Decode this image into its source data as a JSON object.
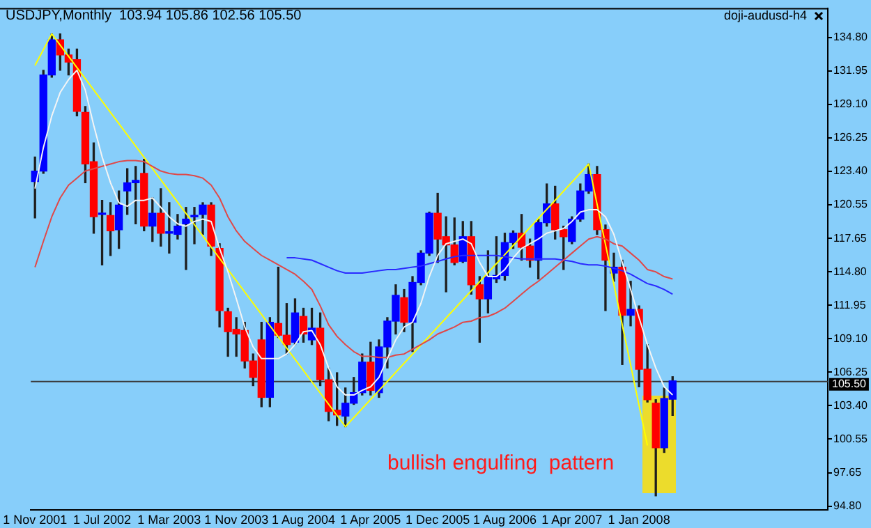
{
  "chart_data": {
    "type": "candlestick",
    "title": "USDJPY,Monthly  103.94 105.86 102.56 105.50",
    "categories": [
      "1 Nov 2001",
      null,
      null,
      null,
      null,
      null,
      null,
      null,
      "1 Jul 2002",
      null,
      null,
      null,
      null,
      null,
      null,
      null,
      "1 Mar 2003",
      null,
      null,
      null,
      null,
      null,
      null,
      null,
      "1 Nov 2003",
      null,
      null,
      null,
      null,
      null,
      null,
      null,
      "1 Aug 2004",
      null,
      null,
      null,
      null,
      null,
      null,
      null,
      "1 Apr 2005",
      null,
      null,
      null,
      null,
      null,
      null,
      null,
      "1 Dec 2005",
      null,
      null,
      null,
      null,
      null,
      null,
      null,
      "1 Aug 2006",
      null,
      null,
      null,
      null,
      null,
      null,
      null,
      "1 Apr 2007",
      null,
      null,
      null,
      null,
      null,
      null,
      null,
      "1 Jan 2008",
      null,
      null,
      null,
      null
    ],
    "ohlc": [
      [
        122.5,
        124.6,
        119.4,
        123.4
      ],
      [
        123.4,
        132.0,
        123.2,
        131.6
      ],
      [
        131.6,
        135.1,
        131.4,
        134.6
      ],
      [
        134.6,
        135.1,
        132.0,
        133.3
      ],
      [
        133.3,
        133.8,
        131.6,
        132.7
      ],
      [
        132.9,
        133.8,
        128.1,
        128.5
      ],
      [
        128.4,
        128.9,
        122.4,
        124.0
      ],
      [
        124.2,
        125.8,
        118.1,
        119.5
      ],
      [
        119.7,
        120.9,
        115.4,
        119.8
      ],
      [
        119.6,
        120.7,
        116.2,
        118.3
      ],
      [
        118.4,
        121.7,
        116.8,
        120.5
      ],
      [
        121.7,
        123.6,
        119.7,
        122.4
      ],
      [
        122.4,
        123.8,
        118.9,
        122.6
      ],
      [
        123.2,
        124.4,
        118.3,
        118.7
      ],
      [
        118.7,
        121.1,
        117.4,
        119.8
      ],
      [
        119.8,
        121.9,
        117.0,
        118.1
      ],
      [
        118.1,
        120.7,
        116.4,
        118.2
      ],
      [
        118.0,
        119.7,
        117.6,
        118.7
      ],
      [
        118.9,
        120.3,
        115.0,
        119.3
      ],
      [
        119.5,
        120.3,
        117.2,
        119.6
      ],
      [
        119.7,
        120.7,
        118.0,
        120.5
      ],
      [
        120.5,
        120.7,
        116.2,
        117.0
      ],
      [
        116.8,
        117.2,
        110.1,
        111.5
      ],
      [
        111.4,
        111.7,
        107.6,
        109.7
      ],
      [
        109.9,
        110.9,
        107.6,
        109.5
      ],
      [
        109.8,
        110.5,
        106.6,
        107.2
      ],
      [
        107.2,
        107.8,
        105.1,
        105.8
      ],
      [
        109.0,
        110.5,
        103.3,
        104.1
      ],
      [
        104.1,
        110.9,
        103.3,
        110.5
      ],
      [
        110.4,
        115.2,
        109.2,
        109.4
      ],
      [
        109.4,
        112.1,
        107.8,
        108.6
      ],
      [
        108.8,
        112.5,
        108.6,
        111.3
      ],
      [
        111.0,
        111.7,
        108.8,
        109.5
      ],
      [
        109.0,
        111.7,
        108.6,
        110.0
      ],
      [
        110.0,
        111.3,
        105.1,
        105.6
      ],
      [
        105.6,
        106.6,
        102.1,
        102.9
      ],
      [
        103.0,
        106.2,
        101.7,
        102.6
      ],
      [
        102.5,
        104.9,
        101.6,
        103.6
      ],
      [
        103.6,
        105.8,
        103.5,
        104.5
      ],
      [
        104.5,
        107.8,
        104.3,
        107.1
      ],
      [
        107.1,
        108.8,
        104.3,
        104.7
      ],
      [
        104.5,
        109.0,
        104.1,
        108.4
      ],
      [
        108.4,
        110.9,
        106.6,
        110.6
      ],
      [
        110.6,
        113.7,
        109.5,
        112.8
      ],
      [
        112.6,
        113.3,
        109.7,
        110.5
      ],
      [
        110.5,
        114.4,
        108.0,
        113.9
      ],
      [
        113.9,
        116.6,
        113.7,
        116.4
      ],
      [
        116.4,
        119.9,
        116.2,
        119.8
      ],
      [
        119.8,
        121.5,
        115.6,
        117.6
      ],
      [
        117.8,
        119.5,
        113.1,
        117.1
      ],
      [
        117.1,
        119.4,
        115.4,
        115.6
      ],
      [
        115.7,
        119.1,
        115.6,
        117.8
      ],
      [
        117.8,
        119.1,
        112.9,
        113.7
      ],
      [
        113.7,
        114.4,
        108.8,
        112.5
      ],
      [
        112.5,
        116.6,
        111.3,
        114.4
      ],
      [
        114.2,
        117.8,
        113.9,
        114.5
      ],
      [
        114.5,
        118.1,
        114.1,
        117.3
      ],
      [
        117.3,
        118.3,
        116.8,
        118.1
      ],
      [
        118.1,
        119.7,
        115.8,
        116.9
      ],
      [
        117.0,
        117.6,
        115.2,
        115.8
      ],
      [
        115.8,
        119.3,
        114.2,
        119.0
      ],
      [
        119.0,
        122.3,
        118.7,
        120.6
      ],
      [
        120.6,
        122.1,
        117.6,
        118.4
      ],
      [
        118.4,
        118.7,
        115.0,
        117.8
      ],
      [
        117.4,
        119.5,
        117.2,
        119.3
      ],
      [
        119.3,
        122.3,
        119.1,
        121.7
      ],
      [
        121.7,
        124.0,
        121.5,
        123.1
      ],
      [
        123.1,
        123.8,
        118.0,
        118.4
      ],
      [
        118.4,
        118.8,
        111.5,
        115.8
      ],
      [
        114.7,
        116.4,
        114.0,
        115.2
      ],
      [
        115.2,
        115.8,
        106.9,
        111.1
      ],
      [
        111.1,
        114.0,
        110.2,
        111.6
      ],
      [
        111.6,
        111.9,
        105.0,
        106.5
      ],
      [
        106.5,
        108.6,
        103.7,
        103.9
      ],
      [
        103.6,
        103.9,
        95.7,
        99.8
      ],
      [
        99.8,
        104.9,
        99.4,
        104.0
      ],
      [
        103.94,
        105.86,
        102.56,
        105.5
      ]
    ],
    "colors": [
      "#0000ff",
      "#0000ff",
      "#0000ff",
      "#ff0000",
      "#ff0000",
      "#ff0000",
      "#ff0000",
      "#ff0000",
      "#0000ff",
      "#ff0000",
      "#0000ff",
      "#0000ff",
      "#0000ff",
      "#ff0000",
      "#0000ff",
      "#ff0000",
      "#0000ff",
      "#0000ff",
      "#0000ff",
      "#0000ff",
      "#0000ff",
      "#ff0000",
      "#ff0000",
      "#ff0000",
      "#ff0000",
      "#ff0000",
      "#ff0000",
      "#ff0000",
      "#0000ff",
      "#ff0000",
      "#ff0000",
      "#0000ff",
      "#ff0000",
      "#0000ff",
      "#ff0000",
      "#ff0000",
      "#ff0000",
      "#0000ff",
      "#0000ff",
      "#0000ff",
      "#ff0000",
      "#0000ff",
      "#0000ff",
      "#0000ff",
      "#ff0000",
      "#0000ff",
      "#0000ff",
      "#0000ff",
      "#ff0000",
      "#ff0000",
      "#ff0000",
      "#0000ff",
      "#ff0000",
      "#ff0000",
      "#0000ff",
      "#0000ff",
      "#0000ff",
      "#0000ff",
      "#ff0000",
      "#ff0000",
      "#0000ff",
      "#0000ff",
      "#ff0000",
      "#ff0000",
      "#0000ff",
      "#0000ff",
      "#0000ff",
      "#ff0000",
      "#ff0000",
      "#0000ff",
      "#ff0000",
      "#0000ff",
      "#ff0000",
      "#ff0000",
      "#ff0000",
      "#0000ff",
      "#0000ff"
    ],
    "series": [
      {
        "type": "line",
        "color": "#f4f4f4",
        "values": [
          121.9,
          125.4,
          128.1,
          130.1,
          131.2,
          132.0,
          130.3,
          127.3,
          124.6,
          122.4,
          120.7,
          120.4,
          120.9,
          120.9,
          121.1,
          120.3,
          119.5,
          118.9,
          118.7,
          119.1,
          119.3,
          119.1,
          116.8,
          114.8,
          112.5,
          110.1,
          108.4,
          107.4,
          107.4,
          107.4,
          107.8,
          108.6,
          109.7,
          109.8,
          108.6,
          106.6,
          105.0,
          104.3,
          104.3,
          104.7,
          105.0,
          105.8,
          107.4,
          109.0,
          110.1,
          110.5,
          112.1,
          114.4,
          116.2,
          117.2,
          117.4,
          117.6,
          117.2,
          115.6,
          114.4,
          114.4,
          115.0,
          116.0,
          116.8,
          117.2,
          117.6,
          118.1,
          118.3,
          118.5,
          119.1,
          119.9,
          120.1,
          120.1,
          119.5,
          118.0,
          115.6,
          113.3,
          110.9,
          108.6,
          106.6,
          105.0,
          104.3
        ]
      },
      {
        "type": "line",
        "color": "#e04848",
        "values": [
          115.2,
          117.4,
          119.5,
          121.1,
          122.2,
          122.8,
          123.4,
          123.6,
          123.8,
          124.0,
          124.2,
          124.3,
          124.3,
          124.2,
          123.8,
          123.4,
          123.2,
          123.1,
          123.1,
          123.0,
          122.8,
          122.2,
          121.1,
          119.5,
          118.3,
          117.4,
          116.8,
          116.2,
          115.8,
          115.4,
          115.0,
          114.6,
          114.0,
          113.3,
          111.9,
          110.3,
          109.3,
          108.6,
          108.0,
          107.6,
          107.6,
          107.5,
          107.5,
          107.7,
          107.8,
          108.2,
          108.6,
          109.0,
          109.5,
          109.8,
          110.1,
          110.5,
          110.6,
          110.9,
          111.0,
          111.3,
          111.7,
          112.3,
          112.9,
          113.5,
          114.0,
          114.6,
          115.2,
          115.8,
          116.4,
          117.0,
          117.6,
          117.8,
          117.6,
          117.2,
          117.0,
          116.4,
          115.8,
          115.0,
          114.8,
          114.4,
          114.2
        ]
      },
      {
        "type": "line",
        "color": "#2a2aff",
        "values": [
          null,
          null,
          null,
          null,
          null,
          null,
          null,
          null,
          null,
          null,
          null,
          null,
          null,
          null,
          null,
          null,
          null,
          null,
          null,
          null,
          null,
          null,
          null,
          null,
          null,
          null,
          null,
          null,
          null,
          null,
          116.0,
          116.0,
          115.9,
          115.8,
          115.5,
          115.2,
          114.9,
          114.7,
          114.7,
          114.7,
          114.8,
          114.9,
          115.0,
          115.0,
          115.1,
          115.2,
          115.3,
          115.5,
          115.7,
          115.9,
          116.1,
          116.2,
          116.2,
          116.2,
          116.2,
          116.2,
          116.1,
          116.0,
          115.9,
          115.9,
          115.9,
          115.9,
          115.9,
          115.8,
          115.7,
          115.5,
          115.4,
          115.4,
          115.3,
          115.1,
          114.9,
          114.6,
          114.2,
          113.8,
          113.6,
          113.3,
          112.9
        ]
      },
      {
        "type": "line",
        "color": "#ffff00",
        "values": [
          132.4,
          null,
          135.1,
          null,
          null,
          null,
          null,
          null,
          null,
          null,
          null,
          null,
          null,
          null,
          null,
          null,
          null,
          null,
          null,
          null,
          null,
          null,
          null,
          null,
          null,
          null,
          null,
          null,
          null,
          null,
          null,
          null,
          null,
          null,
          null,
          null,
          null,
          101.6,
          null,
          null,
          null,
          null,
          null,
          null,
          null,
          null,
          null,
          null,
          null,
          null,
          null,
          null,
          null,
          null,
          null,
          null,
          null,
          null,
          null,
          null,
          null,
          null,
          null,
          null,
          null,
          null,
          124.0,
          null,
          null,
          null,
          null,
          null,
          null,
          100.0,
          null,
          null,
          null
        ]
      }
    ],
    "ylim": [
      94.5,
      137.3
    ],
    "yticks": [
      {
        "value": 94.8,
        "label": "94.80"
      },
      {
        "value": 97.65,
        "label": "97.65"
      },
      {
        "value": 100.55,
        "label": "100.55"
      },
      {
        "value": 103.4,
        "label": "103.40"
      },
      {
        "value": 106.25,
        "label": "106.25"
      },
      {
        "value": 109.1,
        "label": "109.10"
      },
      {
        "value": 111.95,
        "label": "111.95"
      },
      {
        "value": 114.8,
        "label": "114.80"
      },
      {
        "value": 117.65,
        "label": "117.65"
      },
      {
        "value": 120.55,
        "label": "120.55"
      },
      {
        "value": 123.4,
        "label": "123.40"
      },
      {
        "value": 126.25,
        "label": "126.25"
      },
      {
        "value": 129.1,
        "label": "129.10"
      },
      {
        "value": 131.95,
        "label": "131.95"
      },
      {
        "value": 134.8,
        "label": "134.80"
      }
    ],
    "ref_lines": [
      {
        "axis": "y",
        "value": 105.5,
        "label": "105.50",
        "color": "#383838",
        "line_style": "solid"
      }
    ],
    "annotations": [
      "doji-audusd-h4",
      "bullish engulfing  pattern"
    ]
  }
}
